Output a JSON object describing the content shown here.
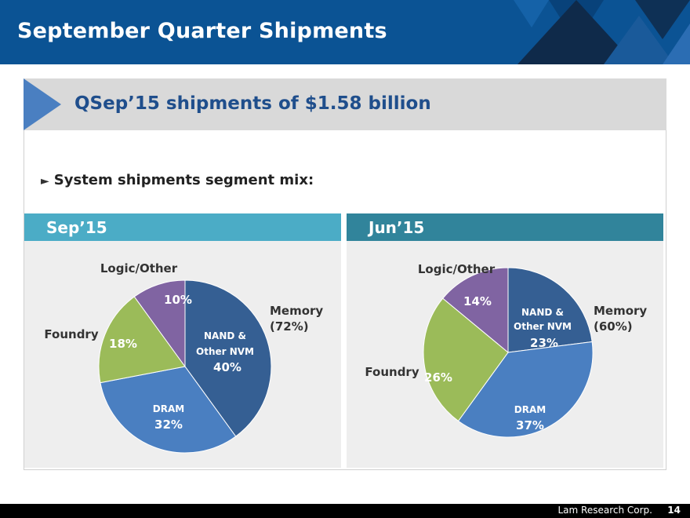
{
  "header": {
    "title": "September Quarter Shipments"
  },
  "banner": {
    "text": "QSep’15 shipments of $1.58 billion"
  },
  "bullet": {
    "marker": "►",
    "text": "System shipments segment mix:"
  },
  "footer": {
    "company": "Lam Research Corp.",
    "page": "14"
  },
  "colors": {
    "nand": "#355f93",
    "dram": "#4a7fc1",
    "foundry": "#9bbb59",
    "logic": "#8064a2",
    "sep_header": "#4bacc6",
    "jun_header": "#31849b"
  },
  "chart_data": [
    {
      "type": "pie",
      "title": "Sep’15",
      "slices": [
        {
          "key": "nand",
          "label": [
            "NAND &",
            "Other NVM"
          ],
          "pct_label": "40%",
          "value": 40
        },
        {
          "key": "dram",
          "label": [
            "DRAM"
          ],
          "pct_label": "32%",
          "value": 32
        },
        {
          "key": "foundry",
          "label": [],
          "pct_label": "18%",
          "value": 18
        },
        {
          "key": "logic",
          "label": [],
          "pct_label": "10%",
          "value": 10
        }
      ],
      "outer_labels": {
        "logic": "Logic/Other",
        "foundry": "Foundry",
        "memory": [
          "Memory",
          "(72%)"
        ]
      }
    },
    {
      "type": "pie",
      "title": "Jun’15",
      "slices": [
        {
          "key": "nand",
          "label": [
            "NAND &",
            "Other NVM"
          ],
          "pct_label": "23%",
          "value": 23
        },
        {
          "key": "dram",
          "label": [
            "DRAM"
          ],
          "pct_label": "37%",
          "value": 37
        },
        {
          "key": "foundry",
          "label": [],
          "pct_label": "26%",
          "value": 26
        },
        {
          "key": "logic",
          "label": [],
          "pct_label": "14%",
          "value": 14
        }
      ],
      "outer_labels": {
        "logic": "Logic/Other",
        "foundry": "Foundry",
        "memory": [
          "Memory",
          "(60%)"
        ]
      }
    }
  ]
}
